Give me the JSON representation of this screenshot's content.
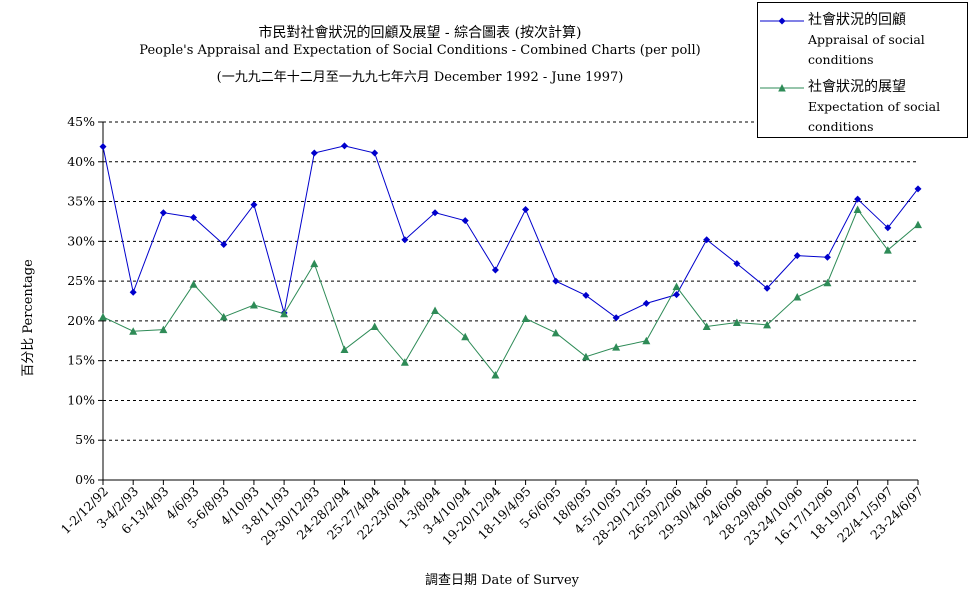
{
  "chart_data": {
    "type": "line",
    "title": "市民對社會狀況的回顧及展望 - 綜合圖表 (按次計算)",
    "subtitle": "People's Appraisal and Expectation of Social Conditions - Combined Charts  (per poll)",
    "subtitle2": "(一九九二年十二月至一九九七年六月 December 1992 - June 1997)",
    "xlabel": "調查日期 Date of Survey",
    "ylabel": "百分比 Percentage",
    "ylim": [
      0,
      45
    ],
    "yticks": [
      "0%",
      "5%",
      "10%",
      "15%",
      "20%",
      "25%",
      "30%",
      "35%",
      "40%",
      "45%"
    ],
    "grid": true,
    "legend_position": "top-right",
    "categories": [
      "1-2/12/92",
      "3-4/2/93",
      "6-13/4/93",
      "4/6/93",
      "5-6/8/93",
      "4/10/93",
      "3-8/11/93",
      "29-30/12/93",
      "24-28/2/94",
      "25-27/4/94",
      "22-23/6/94",
      "1-3/8/94",
      "3-4/10/94",
      "19-20/12/94",
      "18-19/4/95",
      "5-6/6/95",
      "18/8/95",
      "4-5/10/95",
      "28-29/12/95",
      "26-29/2/96",
      "29-30/4/96",
      "24/6/96",
      "28-29/8/96",
      "23-24/10/96",
      "16-17/12/96",
      "18-19/2/97",
      "22/4-1/5/97",
      "23-24/6/97"
    ],
    "series": [
      {
        "name": "社會狀況的回顧",
        "name_en": "Appraisal of social conditions",
        "color": "#0000cc",
        "marker": "diamond",
        "values": [
          41.9,
          23.6,
          33.6,
          33.0,
          29.6,
          34.6,
          21.0,
          41.1,
          42.0,
          41.1,
          30.2,
          33.6,
          32.6,
          26.4,
          34.0,
          25.0,
          23.2,
          20.4,
          22.2,
          23.3,
          30.2,
          27.2,
          24.1,
          28.2,
          28.0,
          35.3,
          31.7,
          36.6
        ]
      },
      {
        "name": "社會狀況的展望",
        "name_en": "Expectation of social conditions",
        "color": "#2e8b57",
        "marker": "triangle",
        "values": [
          20.5,
          18.7,
          18.9,
          24.6,
          20.5,
          22.0,
          20.9,
          27.2,
          16.4,
          19.3,
          14.8,
          21.3,
          18.0,
          13.2,
          20.3,
          18.5,
          15.5,
          16.7,
          17.5,
          24.3,
          19.3,
          19.8,
          19.5,
          23.0,
          24.8,
          34.0,
          28.9,
          32.1
        ]
      }
    ]
  }
}
